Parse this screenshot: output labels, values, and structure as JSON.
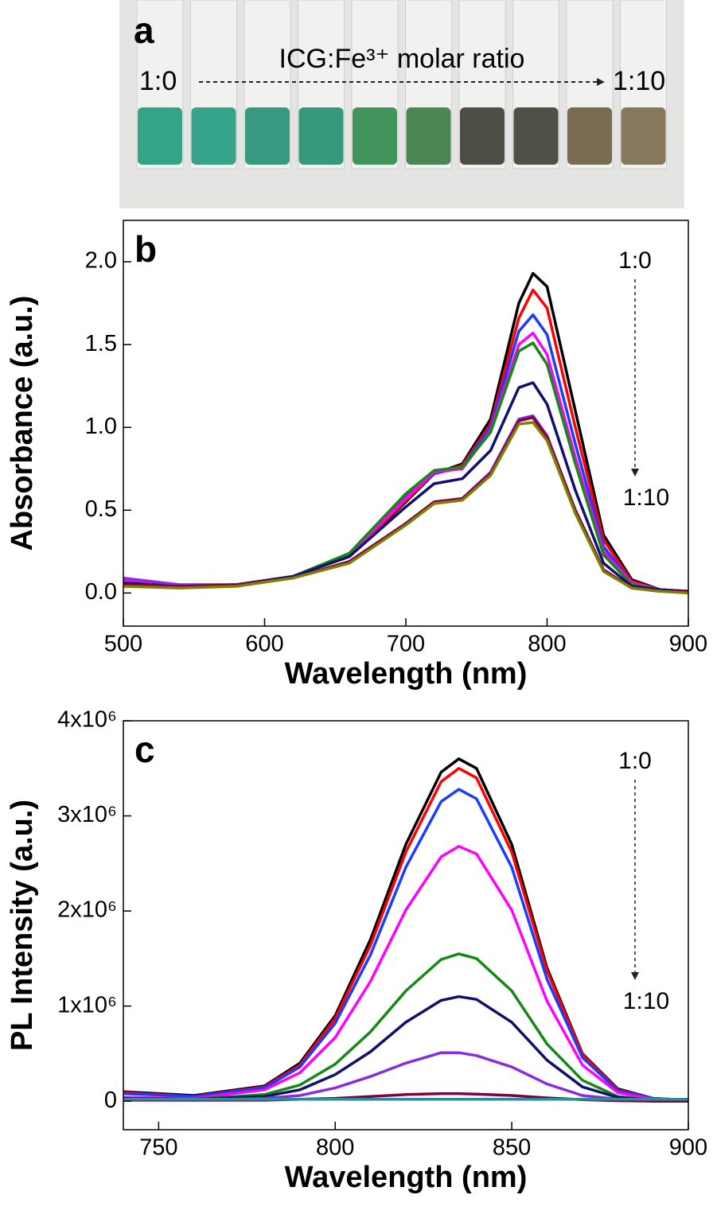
{
  "photo": {
    "panel_label": "a",
    "start_label": "1:0",
    "title": "ICG:Fe³⁺ molar ratio",
    "end_label": "1:10"
  },
  "chart_data": [
    {
      "type": "line",
      "panel_label": "b",
      "x_label": "Wavelength (nm)",
      "y_label": "Absorbance (a.u.)",
      "x": [
        500,
        540,
        580,
        620,
        660,
        700,
        720,
        740,
        760,
        780,
        790,
        800,
        820,
        840,
        860,
        880,
        900
      ],
      "series": [
        {
          "color": "#000000",
          "values": [
            0.07,
            0.04,
            0.05,
            0.1,
            0.22,
            0.55,
            0.72,
            0.78,
            1.05,
            1.75,
            1.93,
            1.85,
            1.1,
            0.35,
            0.08,
            0.02,
            0.01
          ]
        },
        {
          "color": "#ff0000",
          "values": [
            0.07,
            0.04,
            0.05,
            0.1,
            0.22,
            0.56,
            0.72,
            0.77,
            1.02,
            1.66,
            1.83,
            1.72,
            1.0,
            0.32,
            0.07,
            0.02,
            0.01
          ]
        },
        {
          "color": "#1a3cff",
          "values": [
            0.06,
            0.04,
            0.05,
            0.1,
            0.23,
            0.58,
            0.72,
            0.76,
            1.0,
            1.58,
            1.68,
            1.56,
            0.9,
            0.28,
            0.06,
            0.02,
            0.01
          ]
        },
        {
          "color": "#ff00ff",
          "values": [
            0.08,
            0.05,
            0.05,
            0.1,
            0.23,
            0.57,
            0.73,
            0.75,
            0.98,
            1.5,
            1.57,
            1.44,
            0.82,
            0.25,
            0.06,
            0.02,
            0.01
          ]
        },
        {
          "color": "#138a13",
          "values": [
            0.06,
            0.04,
            0.05,
            0.1,
            0.24,
            0.6,
            0.74,
            0.76,
            0.97,
            1.46,
            1.51,
            1.38,
            0.78,
            0.23,
            0.05,
            0.02,
            0.01
          ]
        },
        {
          "color": "#10106e",
          "values": [
            0.06,
            0.04,
            0.05,
            0.1,
            0.22,
            0.52,
            0.66,
            0.69,
            0.86,
            1.24,
            1.27,
            1.14,
            0.62,
            0.18,
            0.04,
            0.02,
            0.01
          ]
        },
        {
          "color": "#8a2be2",
          "values": [
            0.09,
            0.05,
            0.05,
            0.09,
            0.19,
            0.42,
            0.55,
            0.57,
            0.73,
            1.05,
            1.07,
            0.95,
            0.5,
            0.14,
            0.03,
            0.01,
            0.01
          ]
        },
        {
          "color": "#800040",
          "values": [
            0.05,
            0.04,
            0.05,
            0.09,
            0.19,
            0.42,
            0.55,
            0.57,
            0.72,
            1.04,
            1.06,
            0.94,
            0.5,
            0.14,
            0.03,
            0.01,
            0.01
          ]
        },
        {
          "color": "#808000",
          "values": [
            0.04,
            0.03,
            0.04,
            0.09,
            0.18,
            0.41,
            0.54,
            0.56,
            0.71,
            1.02,
            1.03,
            0.92,
            0.48,
            0.13,
            0.03,
            0.01,
            0.0
          ]
        }
      ],
      "xlim": [
        500,
        900
      ],
      "xticks": [
        500,
        600,
        700,
        800,
        900
      ],
      "ylim": [
        -0.2,
        2.25
      ],
      "yticks": [
        {
          "value": 0,
          "label": "0.0"
        },
        0.5,
        {
          "value": 1,
          "label": "1.0"
        },
        1.5,
        {
          "value": 2,
          "label": "2.0"
        }
      ],
      "annotations": [
        "1:0",
        "1:10"
      ]
    },
    {
      "type": "line",
      "panel_label": "c",
      "x_label": "Wavelength (nm)",
      "y_label": "PL Intensity (a.u.)",
      "x": [
        740,
        760,
        780,
        790,
        800,
        810,
        820,
        830,
        835,
        840,
        850,
        860,
        870,
        880,
        890,
        900
      ],
      "series": [
        {
          "color": "#000000",
          "values": [
            100000,
            60000,
            160000,
            400000,
            900000,
            1700000,
            2700000,
            3460000,
            3600000,
            3500000,
            2700000,
            1400000,
            500000,
            130000,
            30000,
            10000
          ]
        },
        {
          "color": "#ff0000",
          "values": [
            90000,
            50000,
            150000,
            380000,
            870000,
            1640000,
            2620000,
            3360000,
            3500000,
            3400000,
            2620000,
            1370000,
            490000,
            120000,
            30000,
            10000
          ]
        },
        {
          "color": "#1a3cff",
          "values": [
            80000,
            50000,
            140000,
            360000,
            820000,
            1540000,
            2460000,
            3150000,
            3280000,
            3180000,
            2460000,
            1280000,
            460000,
            110000,
            30000,
            10000
          ]
        },
        {
          "color": "#ff00ff",
          "values": [
            40000,
            30000,
            120000,
            300000,
            670000,
            1260000,
            2010000,
            2570000,
            2680000,
            2600000,
            2010000,
            1050000,
            380000,
            90000,
            20000,
            10000
          ]
        },
        {
          "color": "#138a13",
          "values": [
            30000,
            20000,
            70000,
            170000,
            390000,
            730000,
            1160000,
            1490000,
            1550000,
            1500000,
            1160000,
            600000,
            220000,
            50000,
            10000,
            0
          ]
        },
        {
          "color": "#10106e",
          "values": [
            30000,
            20000,
            50000,
            120000,
            280000,
            520000,
            830000,
            1060000,
            1100000,
            1070000,
            830000,
            430000,
            150000,
            40000,
            10000,
            0
          ]
        },
        {
          "color": "#8a2be2",
          "values": [
            20000,
            10000,
            30000,
            60000,
            140000,
            260000,
            400000,
            510000,
            510000,
            480000,
            360000,
            180000,
            60000,
            20000,
            0,
            0
          ]
        },
        {
          "color": "#800040",
          "values": [
            10000,
            10000,
            10000,
            20000,
            30000,
            50000,
            70000,
            80000,
            80000,
            75000,
            60000,
            35000,
            15000,
            5000,
            0,
            0
          ]
        },
        {
          "color": "#2e8b9a",
          "values": [
            20000,
            20000,
            20000,
            20000,
            20000,
            20000,
            20000,
            20000,
            20000,
            20000,
            20000,
            20000,
            20000,
            20000,
            20000,
            20000
          ]
        }
      ],
      "xlim": [
        740,
        900
      ],
      "xticks": [
        750,
        800,
        850,
        900
      ],
      "ylim": [
        -300000,
        4000000
      ],
      "yticks": [
        0,
        {
          "value": 1000000,
          "label": "1x10⁶"
        },
        {
          "value": 2000000,
          "label": "2x10⁶"
        },
        {
          "value": 3000000,
          "label": "3x10⁶"
        },
        {
          "value": 4000000,
          "label": "4x10⁶"
        }
      ],
      "annotations": [
        "1:0",
        "1:10"
      ]
    }
  ]
}
